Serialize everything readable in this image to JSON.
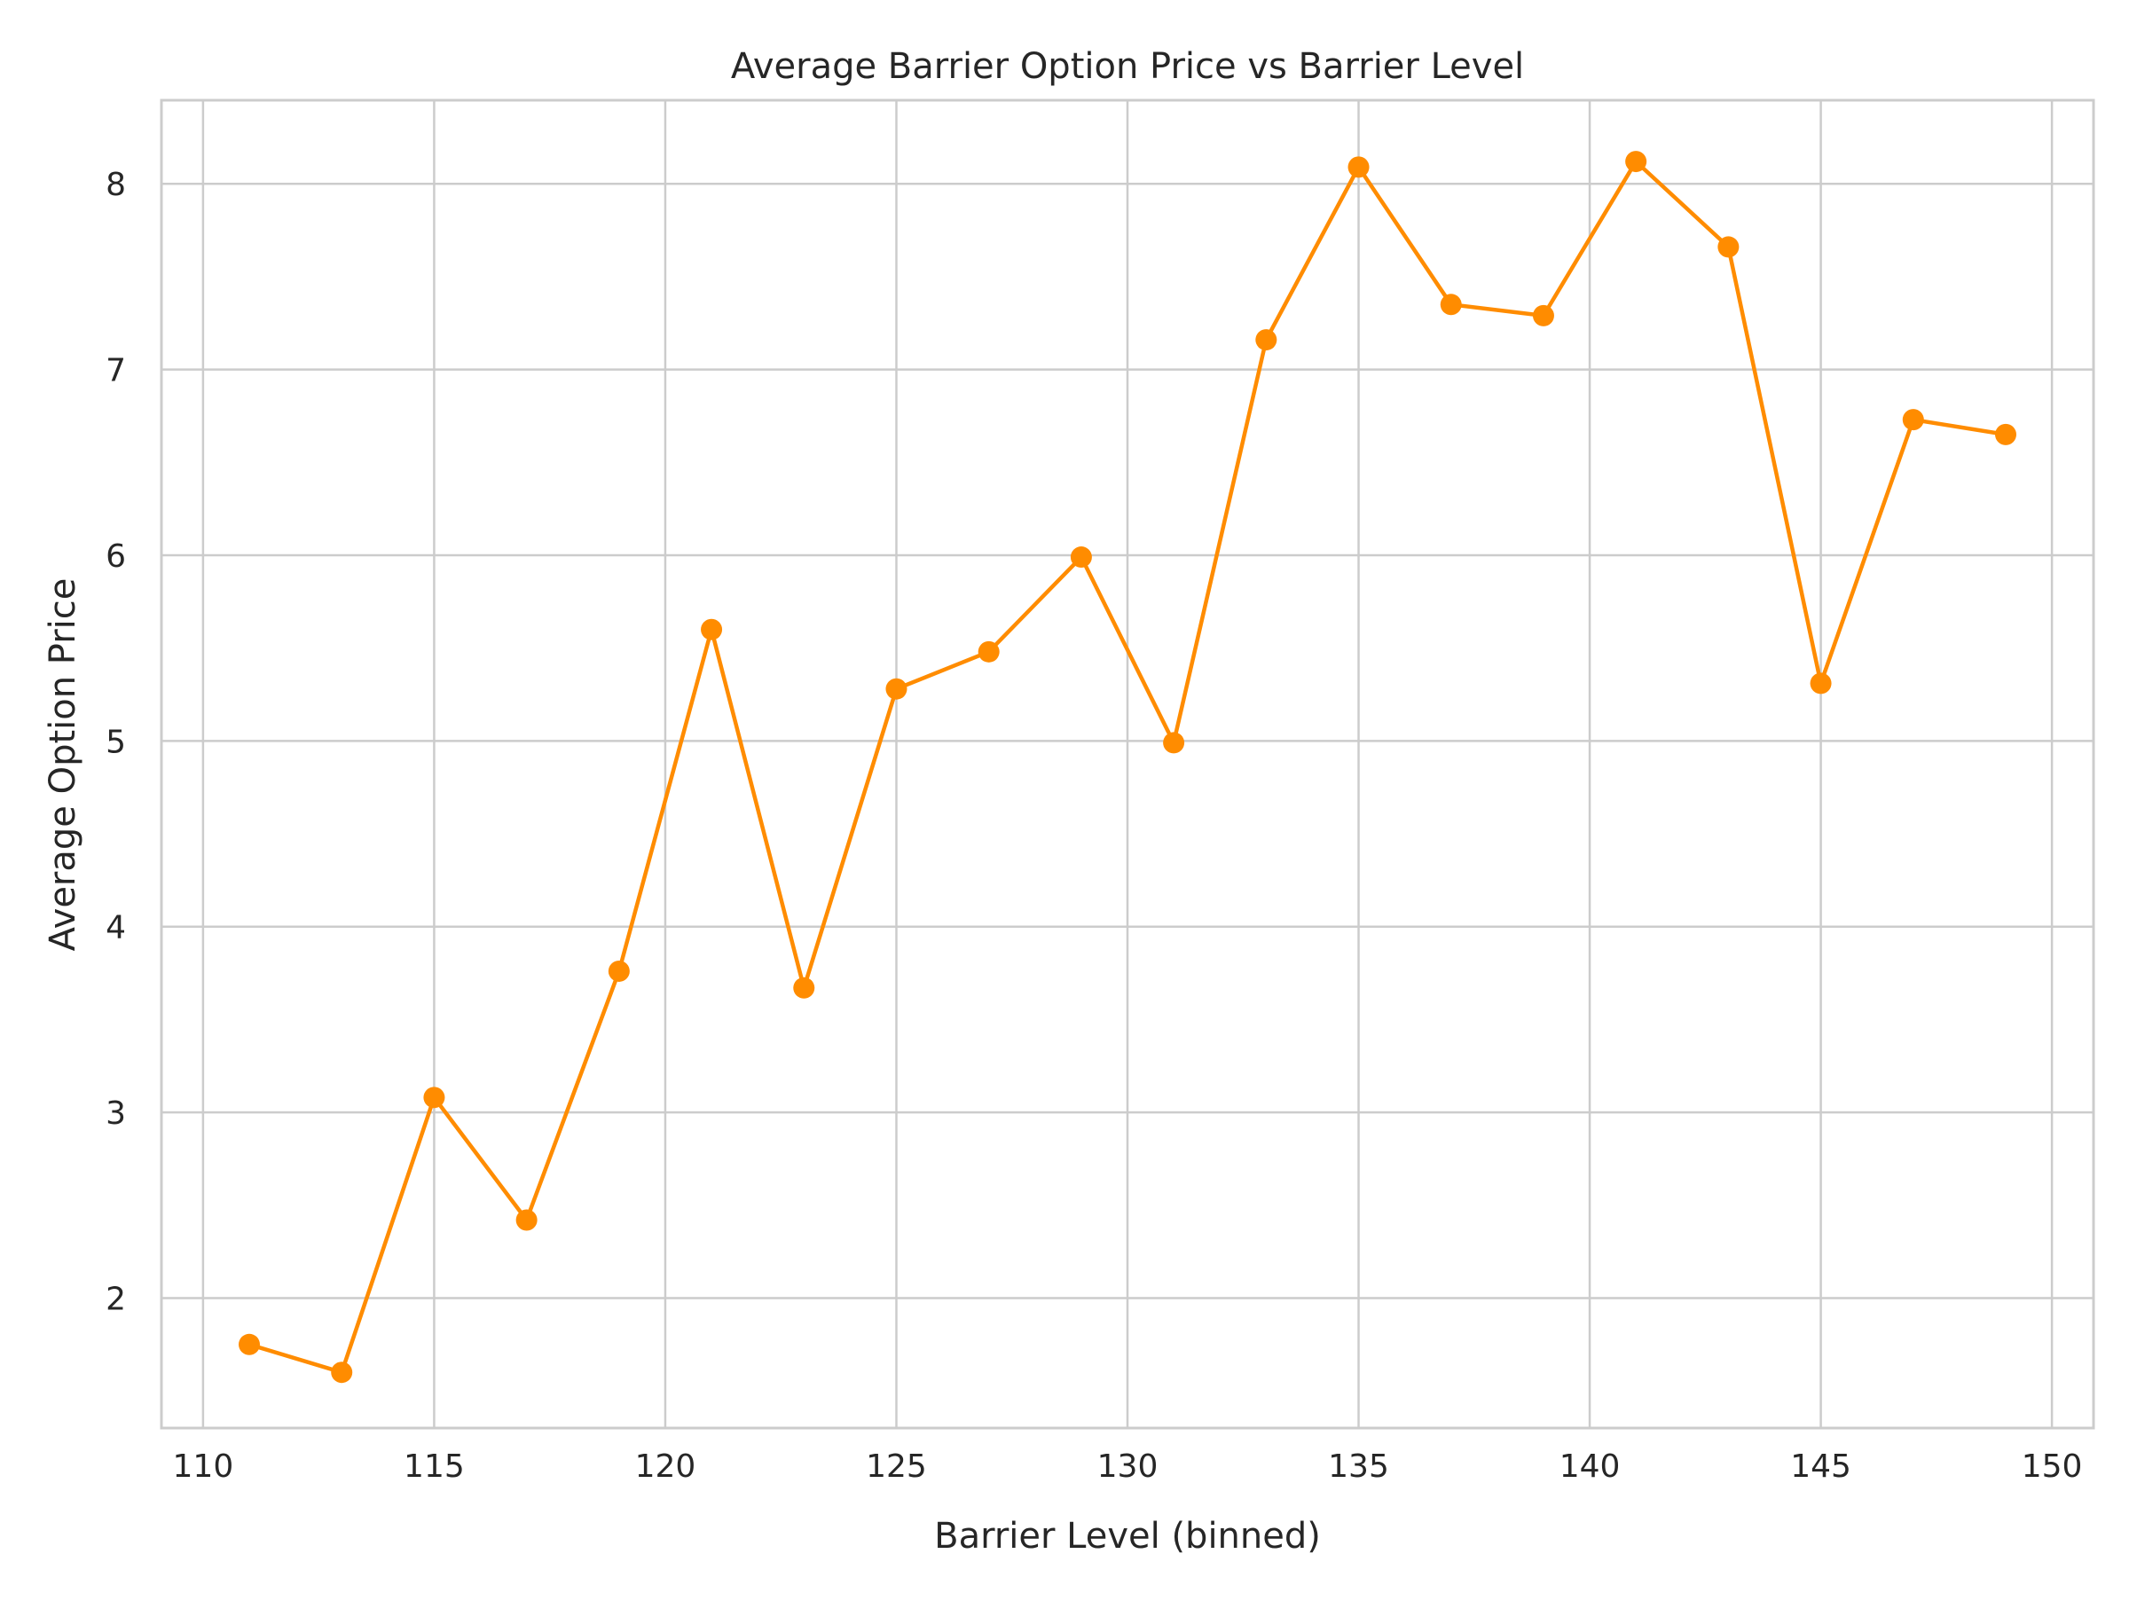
{
  "chart_data": {
    "type": "line",
    "title": "Average Barrier Option Price vs Barrier Level",
    "xlabel": "Barrier Level (binned)",
    "ylabel": "Average Option Price",
    "xlim": [
      109.1,
      150.9
    ],
    "ylim": [
      1.3,
      8.45
    ],
    "xticks": [
      110,
      115,
      120,
      125,
      130,
      135,
      140,
      145,
      150
    ],
    "yticks": [
      2,
      3,
      4,
      5,
      6,
      7,
      8
    ],
    "grid": true,
    "legend": "none",
    "color": "#ff8c00",
    "marker": "circle",
    "series": [
      {
        "x": [
          111,
          113,
          115,
          117,
          119,
          121,
          123,
          125,
          127,
          129,
          131,
          133,
          135,
          137,
          139,
          141,
          143,
          145,
          147,
          149
        ],
        "y": [
          1.75,
          1.6,
          3.08,
          2.42,
          3.76,
          5.6,
          3.67,
          5.28,
          5.48,
          5.99,
          4.99,
          7.16,
          8.09,
          7.35,
          7.29,
          8.12,
          7.66,
          5.31,
          6.73,
          6.65
        ]
      }
    ]
  }
}
